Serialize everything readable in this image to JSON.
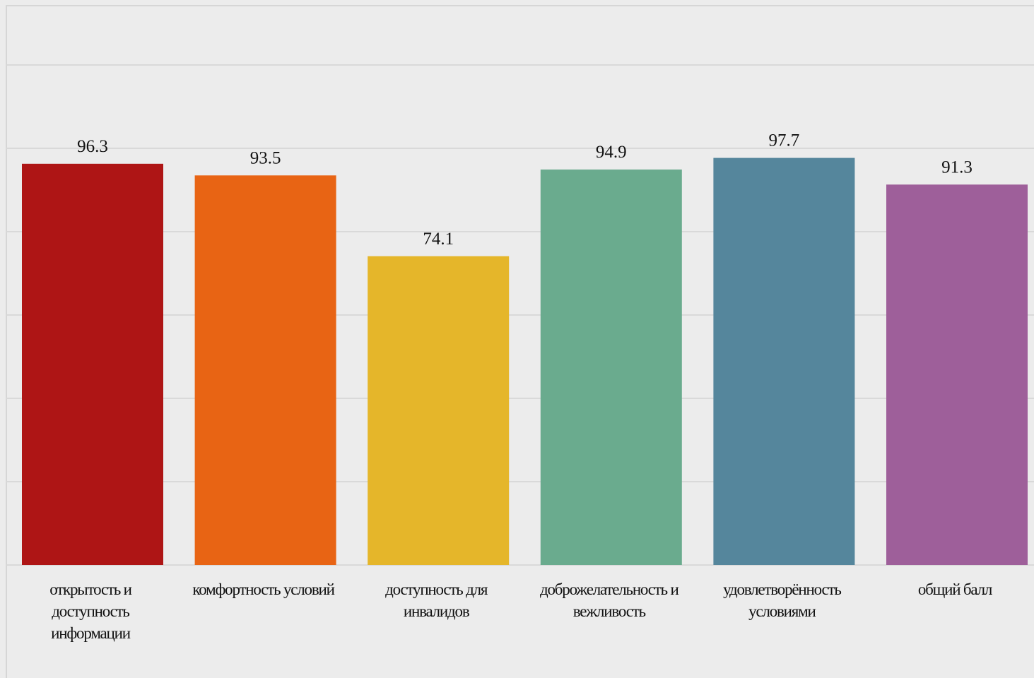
{
  "chart_data": {
    "type": "bar",
    "title": "",
    "xlabel": "",
    "ylabel": "",
    "ylim": [
      0,
      120
    ],
    "grid": true,
    "gridline_step": 20,
    "y_tick_labels_shown": false,
    "legend": "none",
    "categories": [
      "открытость и доступность информации",
      "комфортность условий",
      "доступность для инвалидов",
      "доброжелательность и вежливость",
      "удовлетворённость условиями",
      "общий балл"
    ],
    "category_lines": [
      [
        "открытость и",
        "доступность",
        "информации"
      ],
      [
        "комфортность условий"
      ],
      [
        "доступность для",
        "инвалидов"
      ],
      [
        "доброжелательность и",
        "вежливость"
      ],
      [
        "удовлетворённость",
        "условиями"
      ],
      [
        "общий балл"
      ]
    ],
    "values": [
      96.3,
      93.5,
      74.1,
      94.9,
      97.7,
      91.3
    ],
    "value_labels": [
      "96.3",
      "93.5",
      "74.1",
      "94.9",
      "97.7",
      "91.3"
    ],
    "colors": [
      "#ae1515",
      "#e86414",
      "#e5b62a",
      "#6aab8e",
      "#55869c",
      "#9e5f9a"
    ],
    "background_color": "#ececec",
    "grid_color": "#d9d9d9"
  }
}
